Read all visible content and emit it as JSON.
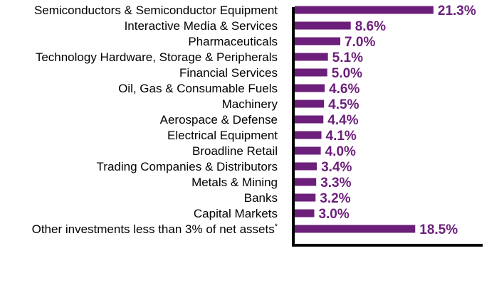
{
  "chart_data": {
    "type": "bar",
    "orientation": "horizontal",
    "categories": [
      "Semiconductors & Semiconductor Equipment",
      "Interactive Media & Services",
      "Pharmaceuticals",
      "Technology Hardware, Storage & Peripherals",
      "Financial Services",
      "Oil, Gas & Consumable Fuels",
      "Machinery",
      "Aerospace & Defense",
      "Electrical Equipment",
      "Broadline Retail",
      "Trading Companies & Distributors",
      "Metals & Mining",
      "Banks",
      "Capital Markets",
      "Other investments less than 3% of net assets"
    ],
    "category_footnotes": [
      "",
      "",
      "",
      "",
      "",
      "",
      "",
      "",
      "",
      "",
      "",
      "",
      "",
      "",
      "*"
    ],
    "values": [
      21.3,
      8.6,
      7.0,
      5.1,
      5.0,
      4.6,
      4.5,
      4.4,
      4.1,
      4.0,
      3.4,
      3.3,
      3.2,
      3.0,
      18.5
    ],
    "value_labels": [
      "21.3%",
      "8.6%",
      "7.0%",
      "5.1%",
      "5.0%",
      "4.6%",
      "4.5%",
      "4.4%",
      "4.1%",
      "4.0%",
      "3.4%",
      "3.3%",
      "3.2%",
      "3.0%",
      "18.5%"
    ],
    "title": "",
    "xlabel": "",
    "ylabel": "",
    "grid": false,
    "legend": "none",
    "colors": {
      "bar": "#6b1f7a",
      "value_label": "#6b1f7a",
      "axis": "#000000",
      "category_label": "#000000"
    }
  }
}
